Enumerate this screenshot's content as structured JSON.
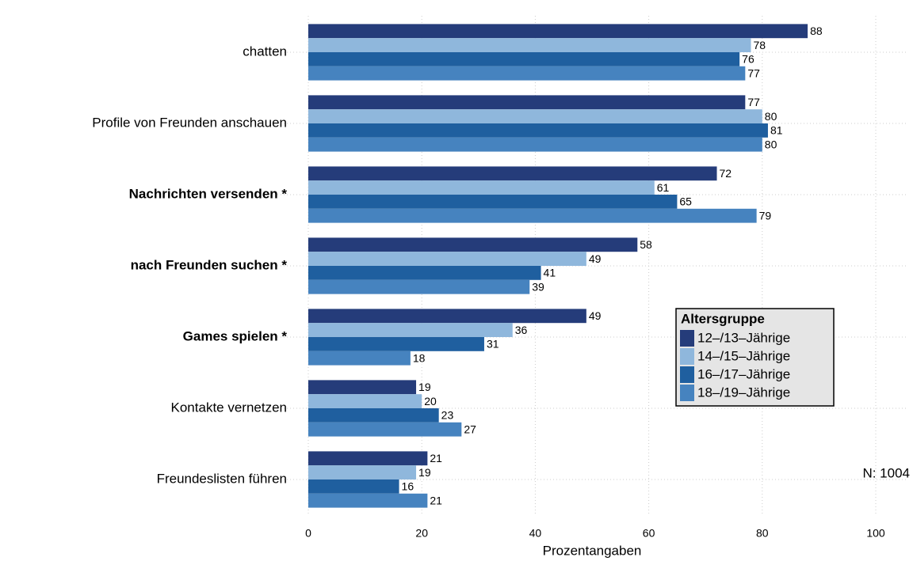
{
  "chart_data": {
    "type": "hbar",
    "categories": [
      "chatten",
      "Profile von Freunden anschauen",
      "Nachrichten versenden  *",
      "nach Freunden suchen  *",
      "Games spielen  *",
      "Kontakte vernetzen",
      "Freundeslisten führen"
    ],
    "bold_categories": [
      false,
      false,
      true,
      true,
      true,
      false,
      false
    ],
    "series": [
      {
        "name": "12–/13–Jährige",
        "color": "#253c7a",
        "values": [
          88,
          77,
          72,
          58,
          49,
          19,
          21
        ]
      },
      {
        "name": "14–/15–Jährige",
        "color": "#8fb7dc",
        "values": [
          78,
          80,
          61,
          49,
          36,
          20,
          19
        ]
      },
      {
        "name": "16–/17–Jährige",
        "color": "#1f5f9f",
        "values": [
          76,
          81,
          65,
          41,
          31,
          23,
          16
        ]
      },
      {
        "name": "18–/19–Jährige",
        "color": "#4683bf",
        "values": [
          77,
          80,
          79,
          39,
          18,
          27,
          21
        ]
      }
    ],
    "xlim": [
      0,
      100
    ],
    "xticks": [
      0,
      20,
      40,
      60,
      80,
      100
    ],
    "xlabel": "Prozentangaben",
    "legend_title": "Altersgruppe",
    "annotation": "N: 1004",
    "grid": true
  }
}
